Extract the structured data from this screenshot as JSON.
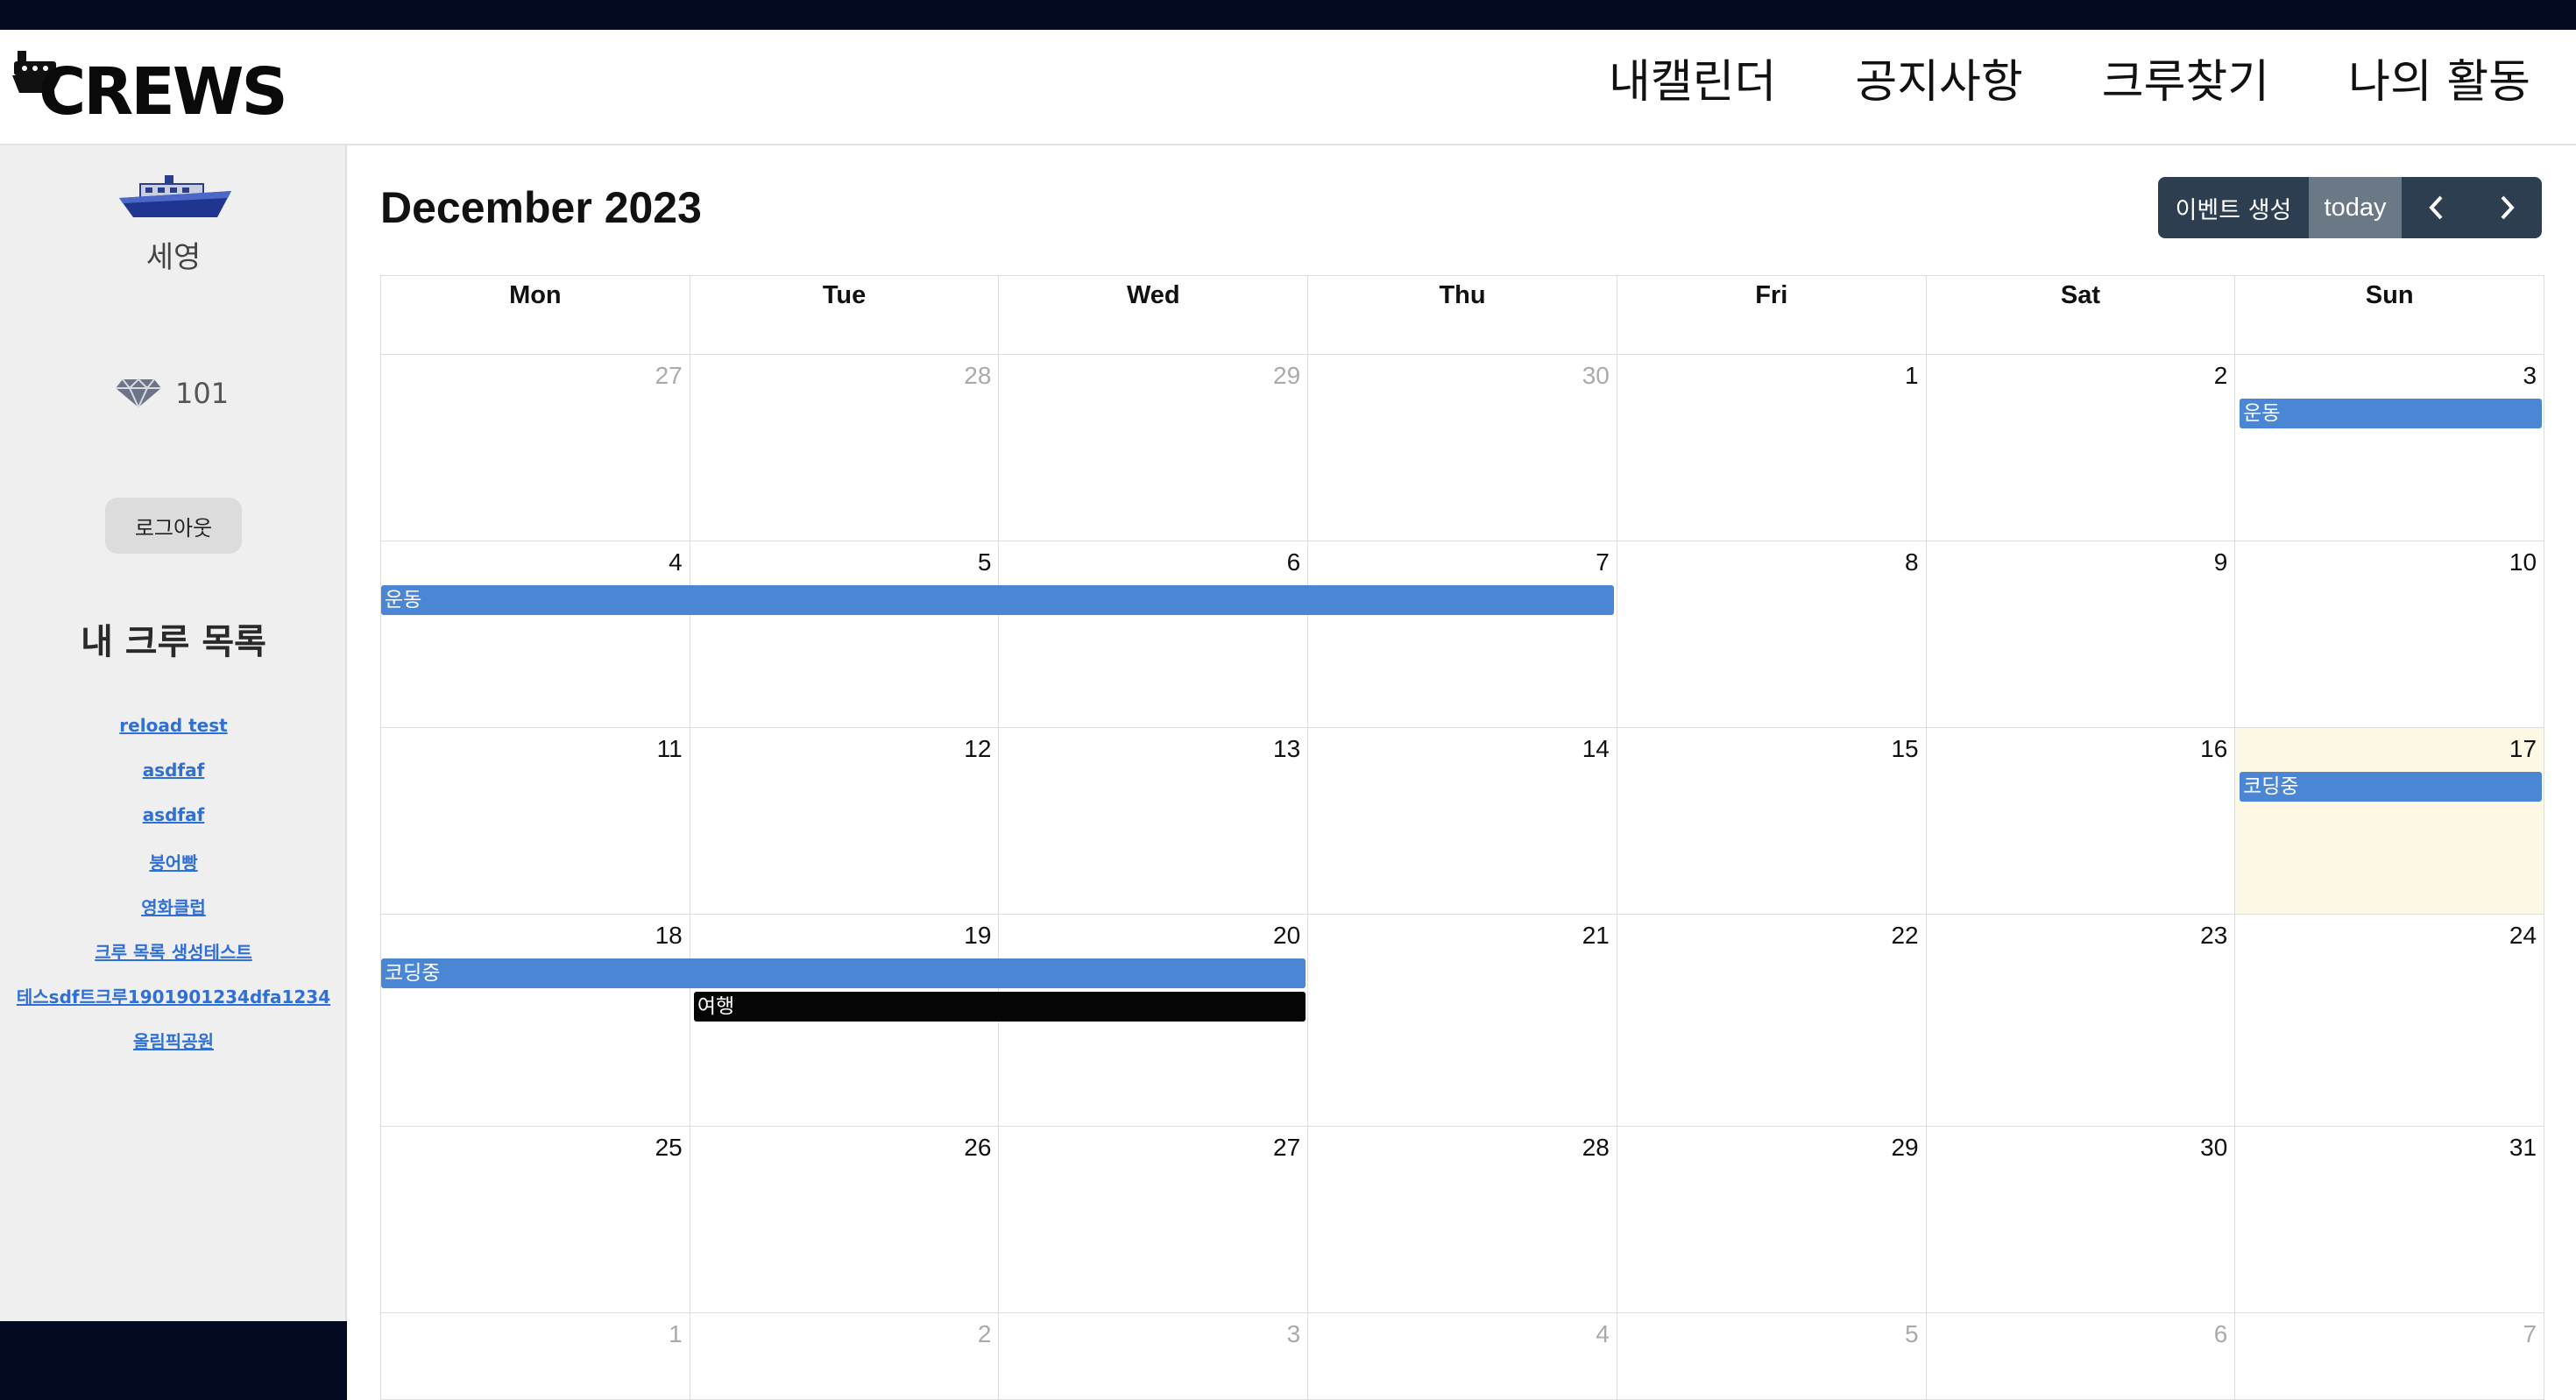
{
  "header": {
    "logo_text": "CREWS",
    "nav": [
      "내캘린더",
      "공지사항",
      "크루찾기",
      "나의 활동"
    ]
  },
  "sidebar": {
    "username": "세영",
    "points": "101",
    "logout_label": "로그아웃",
    "crew_title": "내 크루 목록",
    "crews": [
      "reload test",
      "asdfaf",
      "asdfaf",
      "붕어빵",
      "영화클럽",
      "크루 목록 생성테스트",
      "테스sdf트크루1901901234dfa1234",
      "올림픽공원"
    ]
  },
  "calendar": {
    "title": "December 2023",
    "create_label": "이벤트 생성",
    "today_label": "today",
    "dow": [
      "Mon",
      "Tue",
      "Wed",
      "Thu",
      "Fri",
      "Sat",
      "Sun"
    ],
    "weeks": [
      [
        "27",
        "28",
        "29",
        "30",
        "1",
        "2",
        "3"
      ],
      [
        "4",
        "5",
        "6",
        "7",
        "8",
        "9",
        "10"
      ],
      [
        "11",
        "12",
        "13",
        "14",
        "15",
        "16",
        "17"
      ],
      [
        "18",
        "19",
        "20",
        "21",
        "22",
        "23",
        "24"
      ],
      [
        "25",
        "26",
        "27",
        "28",
        "29",
        "30",
        "31"
      ],
      [
        "1",
        "2",
        "3",
        "4",
        "5",
        "6",
        "7"
      ]
    ],
    "events": [
      {
        "title": "운동",
        "start": "2023-12-03",
        "end": "2023-12-03",
        "color": "#4a86d4"
      },
      {
        "title": "운동",
        "start": "2023-12-04",
        "end": "2023-12-07",
        "color": "#4a86d4"
      },
      {
        "title": "코딩중",
        "start": "2023-12-17",
        "end": "2023-12-17",
        "color": "#4a86d4"
      },
      {
        "title": "코딩중",
        "start": "2023-12-18",
        "end": "2023-12-20",
        "color": "#4a86d4"
      },
      {
        "title": "여행",
        "start": "2023-12-19",
        "end": "2023-12-20",
        "color": "#050505"
      }
    ],
    "today_highlight": "2023-12-17"
  }
}
